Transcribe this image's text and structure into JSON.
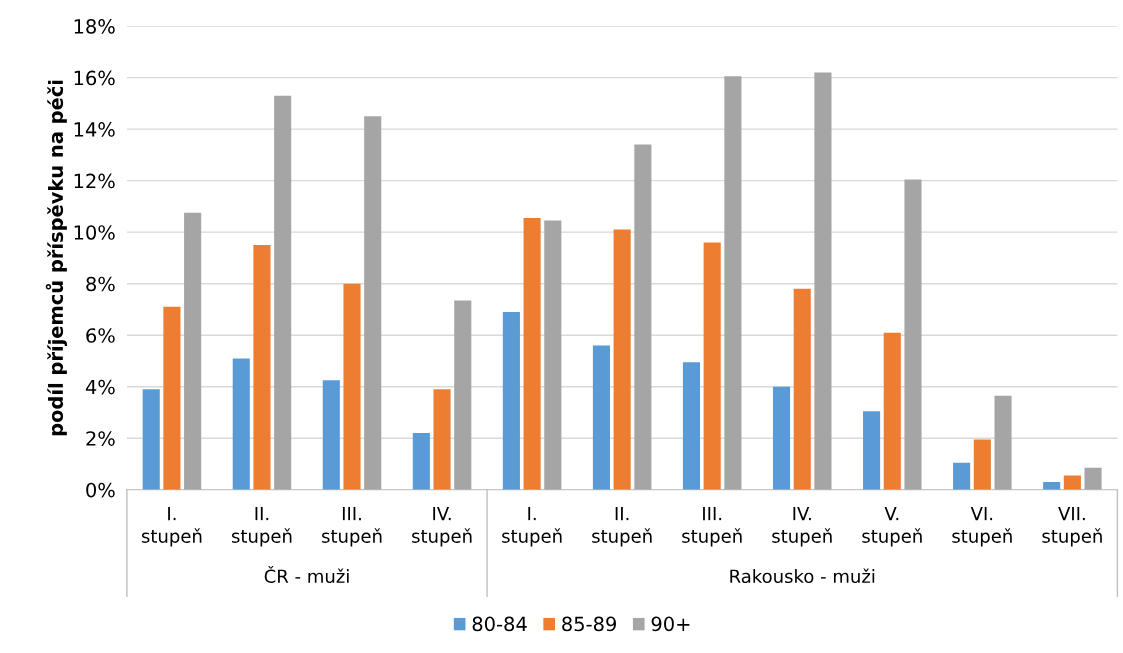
{
  "chart_data": {
    "type": "bar",
    "ylabel": "podíl příjemců příspěvku na péči",
    "categories": [
      "I.\nstupeň",
      "II.\nstupeň",
      "III.\nstupeň",
      "IV.\nstupeň",
      "I.\nstupeň",
      "II.\nstupeň",
      "III.\nstupeň",
      "IV.\nstupeň",
      "V.\nstupeň",
      "VI.\nstupeň",
      "VII.\nstupeň"
    ],
    "series": [
      {
        "name": "80-84",
        "color": "#5b9bd5",
        "values": [
          3.9,
          5.1,
          4.25,
          2.2,
          6.9,
          5.6,
          4.95,
          4.0,
          3.05,
          1.05,
          0.3
        ]
      },
      {
        "name": "85-89",
        "color": "#ed7d31",
        "values": [
          7.1,
          9.5,
          8.0,
          3.9,
          10.55,
          10.1,
          9.6,
          7.8,
          6.1,
          1.95,
          0.55
        ]
      },
      {
        "name": "90+",
        "color": "#a5a5a5",
        "values": [
          10.75,
          15.3,
          14.5,
          7.35,
          10.45,
          13.4,
          16.05,
          16.2,
          12.05,
          3.65,
          0.85
        ]
      }
    ],
    "ylim": [
      0,
      18
    ],
    "yticks": [
      {
        "value": 0,
        "label": "0%"
      },
      {
        "value": 2,
        "label": "2%"
      },
      {
        "value": 4,
        "label": "4%"
      },
      {
        "value": 6,
        "label": "6%"
      },
      {
        "value": 8,
        "label": "8%"
      },
      {
        "value": 10,
        "label": "10%"
      },
      {
        "value": 12,
        "label": "12%"
      },
      {
        "value": 14,
        "label": "14%"
      },
      {
        "value": 16,
        "label": "16%"
      },
      {
        "value": 18,
        "label": "18%"
      }
    ],
    "annotations": [
      "ČR - muži",
      "Rakousko - muži"
    ],
    "grid": "y",
    "legend": "bottom"
  }
}
